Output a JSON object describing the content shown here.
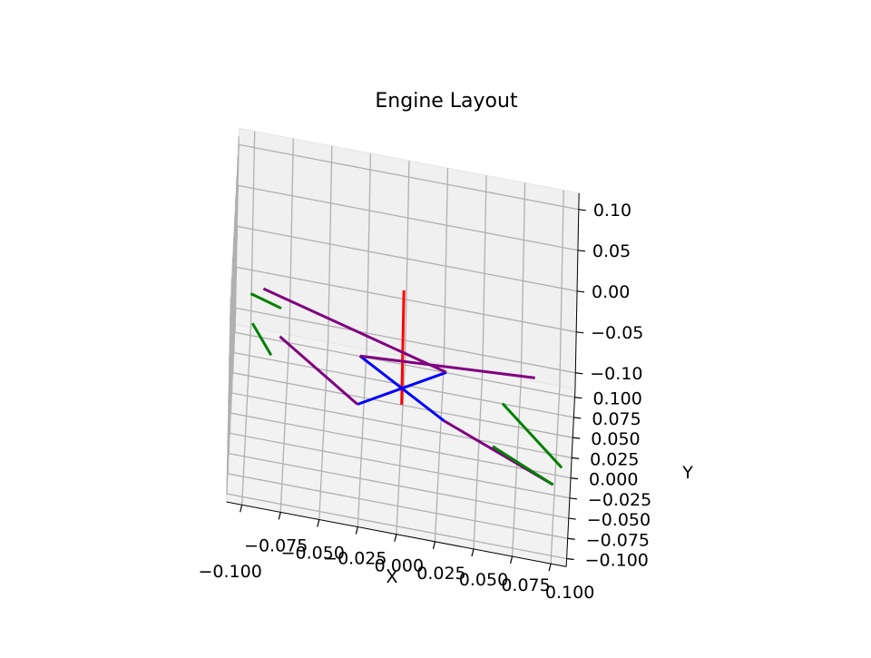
{
  "chart_data": {
    "type": "line3d",
    "title": "Engine Layout",
    "xlabel": "X",
    "ylabel": "Y",
    "zlabel": "",
    "xlim": [
      -0.11,
      0.11
    ],
    "ylim": [
      -0.11,
      0.11
    ],
    "zlim": [
      -0.12,
      0.12
    ],
    "x_ticks": [
      "−0.100",
      "−0.075",
      "−0.050",
      "−0.025",
      "0.000",
      "0.025",
      "0.050",
      "0.075",
      "0.100"
    ],
    "y_ticks": [
      "−0.100",
      "−0.075",
      "−0.050",
      "−0.025",
      "0.000",
      "0.025",
      "0.050",
      "0.075",
      "0.100"
    ],
    "z_ticks": [
      "−0.10",
      "−0.05",
      "0.00",
      "0.05",
      "0.10"
    ],
    "grid": true,
    "colors": {
      "rotor_arm": "#0000ff",
      "frame": "#800080",
      "motor_mount": "#008000",
      "z_axis_marker": "#ff0000"
    },
    "segments": [
      {
        "color": "#ff0000",
        "points": [
          [
            0,
            0,
            -0.07
          ],
          [
            0,
            0,
            0.07
          ]
        ]
      },
      {
        "color": "#0000ff",
        "points": [
          [
            -0.028,
            0.03,
            -0.05
          ],
          [
            0.028,
            -0.03,
            -0.05
          ]
        ]
      },
      {
        "color": "#0000ff",
        "points": [
          [
            -0.028,
            -0.03,
            -0.05
          ],
          [
            0.028,
            0.03,
            -0.05
          ]
        ]
      },
      {
        "color": "#800080",
        "points": [
          [
            -0.092,
            0.09,
            -0.05
          ],
          [
            0.028,
            0.03,
            -0.05
          ]
        ]
      },
      {
        "color": "#800080",
        "points": [
          [
            -0.08,
            0.035,
            -0.05
          ],
          [
            -0.028,
            -0.03,
            -0.05
          ]
        ]
      },
      {
        "color": "#800080",
        "points": [
          [
            -0.028,
            0.03,
            -0.05
          ],
          [
            0.085,
            0.044,
            -0.05
          ]
        ]
      },
      {
        "color": "#800080",
        "points": [
          [
            0.028,
            -0.03,
            -0.05
          ],
          [
            0.1,
            -0.083,
            -0.05
          ]
        ]
      },
      {
        "color": "#008000",
        "points": [
          [
            -0.1,
            0.081,
            -0.05
          ],
          [
            -0.08,
            0.07,
            -0.05
          ]
        ]
      },
      {
        "color": "#008000",
        "points": [
          [
            -0.098,
            0.045,
            -0.05
          ],
          [
            -0.085,
            0.01,
            -0.05
          ]
        ]
      },
      {
        "color": "#008000",
        "points": [
          [
            0.065,
            0.005,
            -0.05
          ],
          [
            0.105,
            -0.06,
            -0.05
          ]
        ]
      },
      {
        "color": "#008000",
        "points": [
          [
            0.06,
            -0.05,
            -0.05
          ],
          [
            0.1,
            -0.083,
            -0.05
          ]
        ]
      }
    ]
  }
}
